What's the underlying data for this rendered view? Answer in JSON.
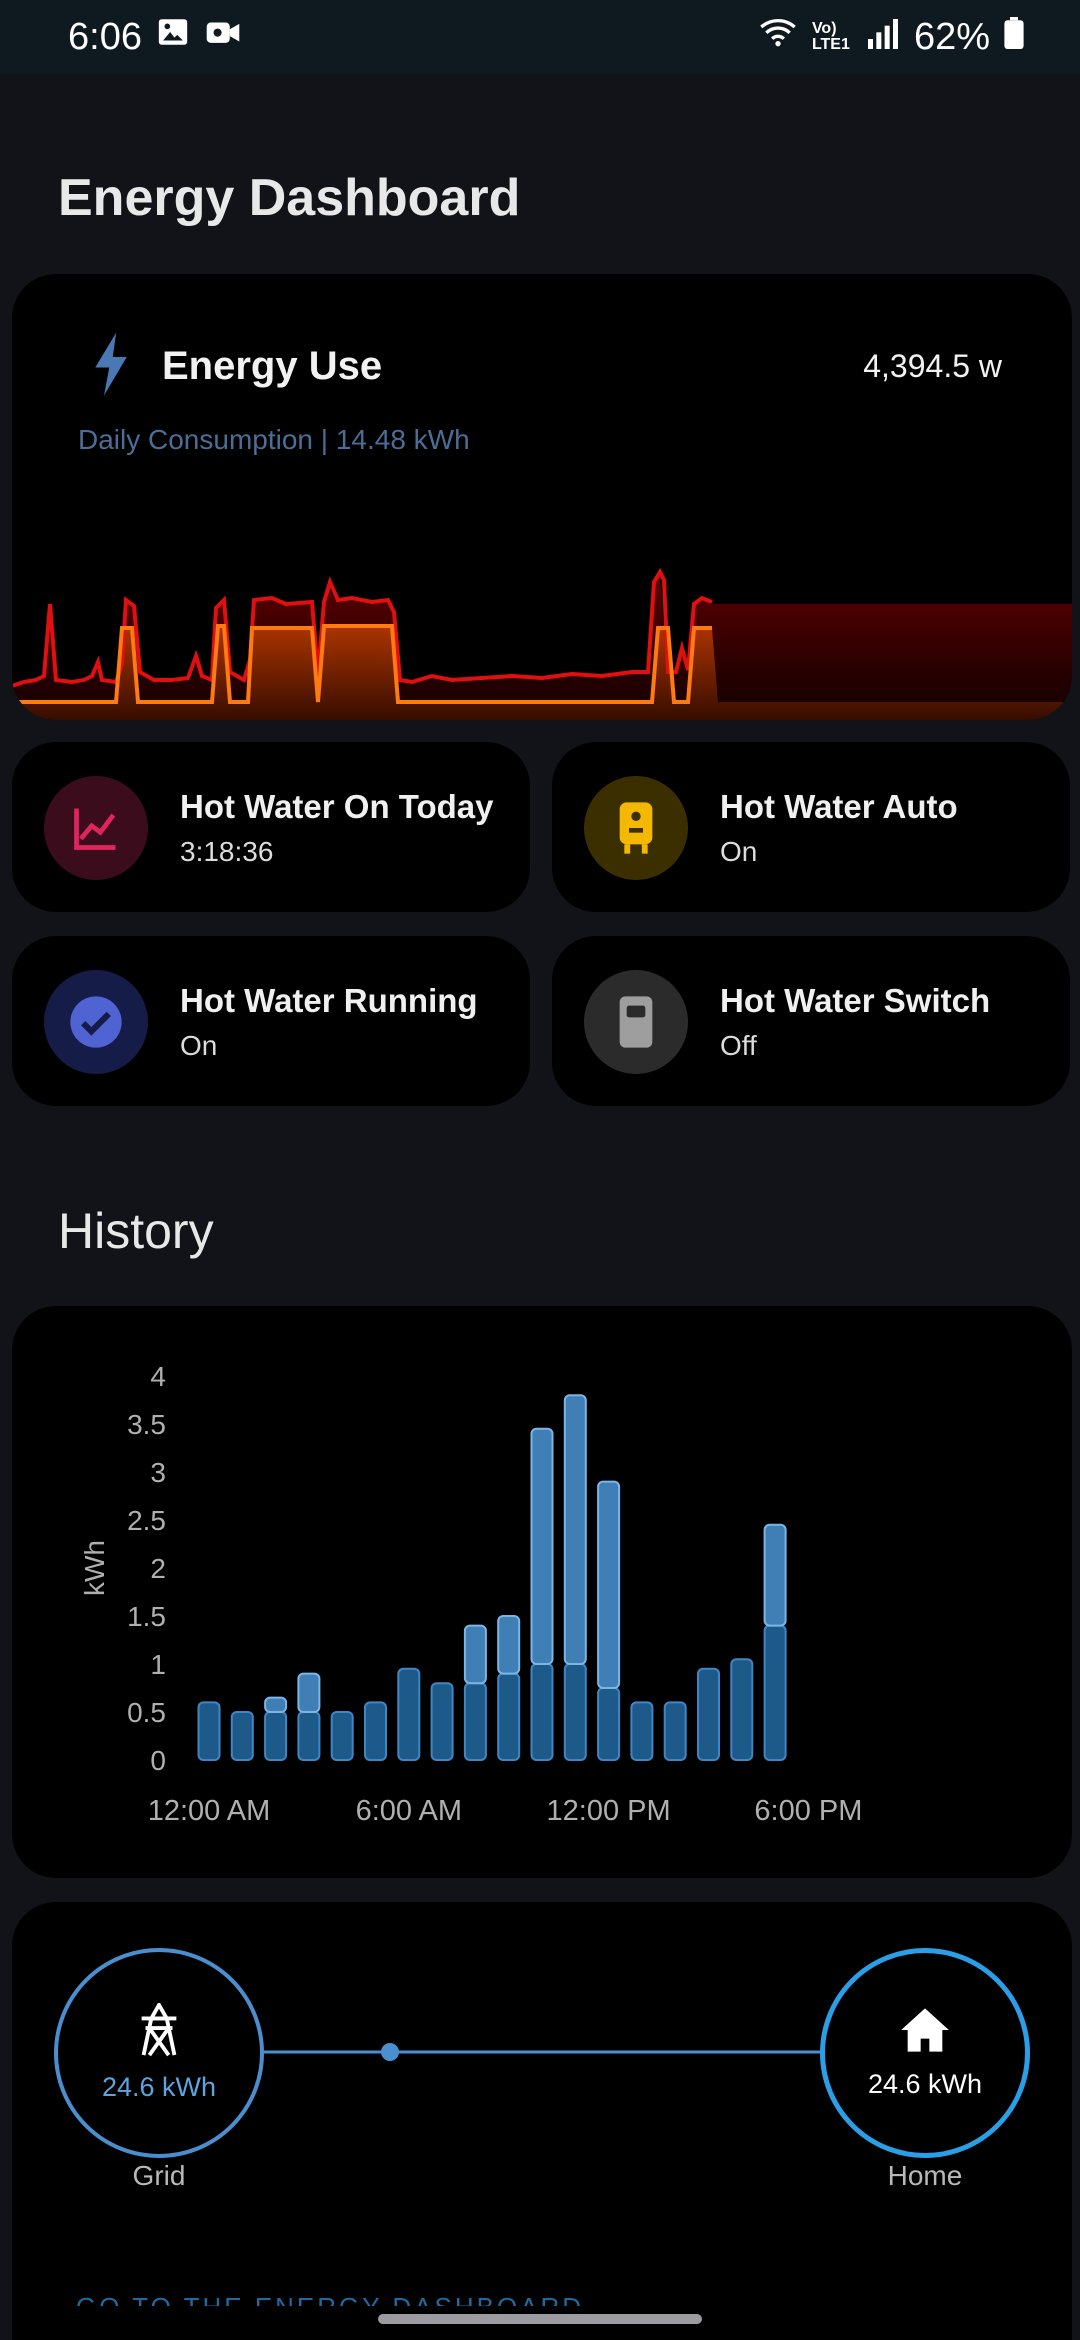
{
  "status": {
    "time": "6:06",
    "battery": "62%",
    "network": "Vo) LTE1"
  },
  "page": {
    "title": "Energy Dashboard"
  },
  "energy_card": {
    "title": "Energy Use",
    "value": "4,394.5 w",
    "subtitle": "Daily Consumption | 14.48 kWh",
    "icon": "lightning-bolt-icon"
  },
  "tiles": [
    {
      "name": "Hot Water On Today",
      "state": "3:18:36",
      "icon": "chart-line-icon",
      "color": "#e0245e"
    },
    {
      "name": "Hot Water Auto",
      "state": "On",
      "icon": "water-heater-icon",
      "color": "#f5b800"
    },
    {
      "name": "Hot Water Running",
      "state": "On",
      "icon": "check-circle-icon",
      "color": "#4f63d2"
    },
    {
      "name": "Hot Water Switch",
      "state": "Off",
      "icon": "switch-icon",
      "color": "#9e9e9e"
    }
  ],
  "history": {
    "title": "History"
  },
  "chart_data": {
    "type": "bar",
    "ylabel": "kWh",
    "ylim": [
      0,
      4
    ],
    "yticks": [
      "4",
      "3.5",
      "3",
      "2.5",
      "2",
      "1.5",
      "1",
      "0.5",
      "0"
    ],
    "xticks": [
      "12:00 AM",
      "6:00 AM",
      "12:00 PM",
      "6:00 PM"
    ],
    "categories": [
      "0",
      "1",
      "2",
      "3",
      "4",
      "5",
      "6",
      "7",
      "8",
      "9",
      "10",
      "11",
      "12",
      "13",
      "14",
      "15",
      "16",
      "17"
    ],
    "series": [
      {
        "values": [
          0.6,
          0.5,
          0.5,
          0.5,
          0.5,
          0.6,
          0.95,
          0.8,
          0.8,
          0.9,
          1.0,
          1.0,
          0.75,
          0.6,
          0.6,
          0.95,
          1.05,
          1.4
        ]
      },
      {
        "values": [
          0.0,
          0.0,
          0.15,
          0.4,
          0.0,
          0.0,
          0.0,
          0.0,
          0.6,
          0.6,
          2.45,
          2.8,
          2.15,
          0.0,
          0.0,
          0.0,
          0.0,
          1.05
        ]
      }
    ],
    "grid": false,
    "legend": "none"
  },
  "flow": {
    "grid": {
      "value": "24.6 kWh",
      "label": "Grid",
      "icon": "transmission-tower-icon",
      "color": "#5da5e0"
    },
    "home": {
      "value": "24.6 kWh",
      "label": "Home",
      "icon": "home-icon",
      "color": "#2a9fe8"
    },
    "link_text": "GO TO THE ENERGY DASHBOARD"
  }
}
